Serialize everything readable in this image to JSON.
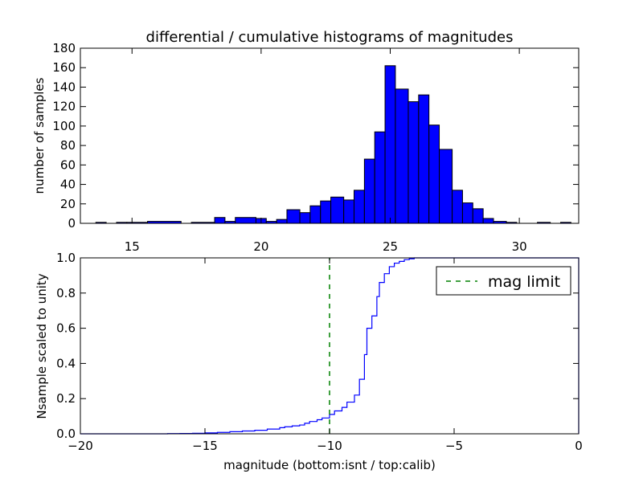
{
  "chart_data": [
    {
      "type": "bar",
      "title": "differential / cumulative histograms of magnitudes",
      "xlabel": "",
      "ylabel": "number of samples",
      "xlim": [
        13,
        32.3
      ],
      "ylim": [
        0,
        180
      ],
      "x_ticks": [
        15,
        20,
        25,
        30
      ],
      "y_ticks": [
        0,
        20,
        40,
        60,
        80,
        100,
        120,
        140,
        160,
        180
      ],
      "x_tick_position": "top",
      "grid": false,
      "colors": {
        "bar_fill": "#0000ff",
        "bar_edge": "#000000"
      },
      "bins": [
        {
          "x0": 13.6,
          "x1": 14.0,
          "value": 1
        },
        {
          "x0": 14.4,
          "x1": 14.8,
          "value": 1
        },
        {
          "x0": 14.8,
          "x1": 15.6,
          "value": 1
        },
        {
          "x0": 15.6,
          "x1": 16.9,
          "value": 2
        },
        {
          "x0": 16.9,
          "x1": 17.3,
          "value": 0
        },
        {
          "x0": 17.3,
          "x1": 18.2,
          "value": 1
        },
        {
          "x0": 18.2,
          "x1": 18.6,
          "value": 6
        },
        {
          "x0": 18.6,
          "x1": 19.0,
          "value": 2
        },
        {
          "x0": 19.0,
          "x1": 19.8,
          "value": 6
        },
        {
          "x0": 19.8,
          "x1": 20.2,
          "value": 5
        },
        {
          "x0": 20.2,
          "x1": 20.6,
          "value": 2
        },
        {
          "x0": 20.6,
          "x1": 21.0,
          "value": 4
        },
        {
          "x0": 21.0,
          "x1": 21.5,
          "value": 14
        },
        {
          "x0": 21.5,
          "x1": 21.9,
          "value": 11
        },
        {
          "x0": 21.9,
          "x1": 22.3,
          "value": 18
        },
        {
          "x0": 22.3,
          "x1": 22.7,
          "value": 23
        },
        {
          "x0": 22.7,
          "x1": 23.2,
          "value": 27
        },
        {
          "x0": 23.2,
          "x1": 23.6,
          "value": 24
        },
        {
          "x0": 23.6,
          "x1": 24.0,
          "value": 34
        },
        {
          "x0": 24.0,
          "x1": 24.4,
          "value": 66
        },
        {
          "x0": 24.4,
          "x1": 24.8,
          "value": 94
        },
        {
          "x0": 24.8,
          "x1": 25.2,
          "value": 162
        },
        {
          "x0": 25.2,
          "x1": 25.7,
          "value": 138
        },
        {
          "x0": 25.7,
          "x1": 26.1,
          "value": 125
        },
        {
          "x0": 26.1,
          "x1": 26.5,
          "value": 132
        },
        {
          "x0": 26.5,
          "x1": 26.9,
          "value": 101
        },
        {
          "x0": 26.9,
          "x1": 27.4,
          "value": 76
        },
        {
          "x0": 27.4,
          "x1": 27.8,
          "value": 34
        },
        {
          "x0": 27.8,
          "x1": 28.2,
          "value": 21
        },
        {
          "x0": 28.2,
          "x1": 28.6,
          "value": 15
        },
        {
          "x0": 28.6,
          "x1": 29.0,
          "value": 5
        },
        {
          "x0": 29.0,
          "x1": 29.5,
          "value": 2
        },
        {
          "x0": 29.5,
          "x1": 29.9,
          "value": 1
        },
        {
          "x0": 30.7,
          "x1": 31.2,
          "value": 1
        },
        {
          "x0": 31.6,
          "x1": 32.0,
          "value": 1
        }
      ]
    },
    {
      "type": "line",
      "title": "",
      "xlabel": "magnitude (bottom:isnt / top:calib)",
      "ylabel": "Nsample scaled to unity",
      "xlim": [
        -20,
        0
      ],
      "ylim": [
        0,
        1.0
      ],
      "x_ticks": [
        -20,
        -15,
        -10,
        -5,
        0
      ],
      "x_tick_labels": [
        "−20",
        "−15",
        "−10",
        "−5",
        "0"
      ],
      "y_ticks": [
        0.0,
        0.2,
        0.4,
        0.6,
        0.8,
        1.0
      ],
      "y_tick_labels": [
        "0.0",
        "0.2",
        "0.4",
        "0.6",
        "0.8",
        "1.0"
      ],
      "grid": false,
      "legend_position": "top-right",
      "series": [
        {
          "name": "",
          "style": "steps",
          "color": "#0000ff",
          "x": [
            -20,
            -16.5,
            -16.0,
            -15.5,
            -15.0,
            -14.5,
            -14.0,
            -13.5,
            -13.0,
            -12.5,
            -12.0,
            -11.8,
            -11.5,
            -11.2,
            -11.0,
            -10.8,
            -10.5,
            -10.3,
            -10.0,
            -9.8,
            -9.5,
            -9.3,
            -9.0,
            -8.8,
            -8.6,
            -8.5,
            -8.3,
            -8.1,
            -8.0,
            -7.8,
            -7.6,
            -7.4,
            -7.2,
            -7.0,
            -6.8,
            -6.6,
            -6.4,
            -6.0,
            -5.5,
            -0.1,
            0
          ],
          "y": [
            0.0,
            0.001,
            0.002,
            0.003,
            0.005,
            0.008,
            0.012,
            0.016,
            0.02,
            0.027,
            0.035,
            0.04,
            0.045,
            0.05,
            0.06,
            0.07,
            0.08,
            0.09,
            0.11,
            0.13,
            0.15,
            0.18,
            0.22,
            0.31,
            0.45,
            0.6,
            0.67,
            0.78,
            0.86,
            0.91,
            0.95,
            0.97,
            0.98,
            0.99,
            0.995,
            1.0,
            1.0,
            1.0,
            1.0,
            1.0,
            0.0
          ]
        },
        {
          "name": "mag limit",
          "style": "dashed",
          "color": "#008000",
          "x": [
            -10,
            -10
          ],
          "y": [
            0,
            1.0
          ]
        }
      ]
    }
  ]
}
